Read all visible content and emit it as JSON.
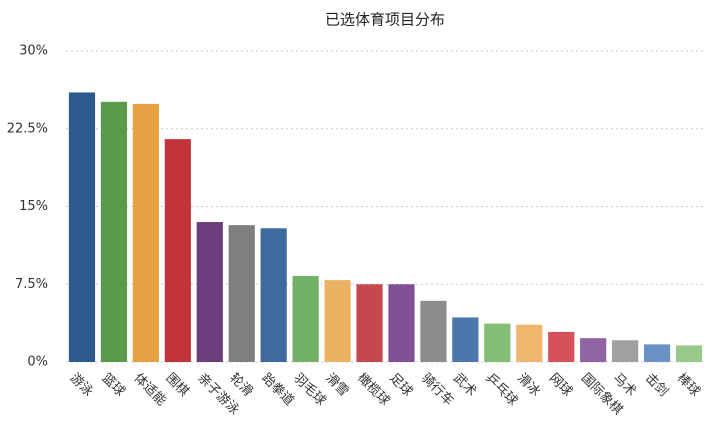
{
  "chart_data": {
    "type": "bar",
    "title": "已选体育项目分布",
    "categories": [
      "游泳",
      "篮球",
      "体适能",
      "围棋",
      "亲子游泳",
      "轮滑",
      "跆拳道",
      "羽毛球",
      "滑雪",
      "橄榄球",
      "足球",
      "骑行车",
      "武术",
      "乒乓球",
      "滑冰",
      "网球",
      "国际象棋",
      "马术",
      "击剑",
      "棒球"
    ],
    "values": [
      26.0,
      25.1,
      24.9,
      21.5,
      13.5,
      13.2,
      12.9,
      8.3,
      7.9,
      7.5,
      7.5,
      5.9,
      4.3,
      3.7,
      3.6,
      2.9,
      2.3,
      2.1,
      1.7,
      1.6
    ],
    "colors": [
      "#2d5a8e",
      "#5b9a4b",
      "#e5a142",
      "#c1343a",
      "#6b3d7a",
      "#7f7f7f",
      "#3f6a9e",
      "#73b166",
      "#ecb264",
      "#c8474f",
      "#805096",
      "#8c8c8c",
      "#4b77ab",
      "#83be74",
      "#f0b66e",
      "#d6525a",
      "#9063a3",
      "#a0a0a0",
      "#6a92c4",
      "#98c98a"
    ],
    "ylim": [
      0,
      30
    ],
    "yticks": [
      {
        "value": 0,
        "label": "0%"
      },
      {
        "value": 7.5,
        "label": "7.5%"
      },
      {
        "value": 15,
        "label": "15%"
      },
      {
        "value": 22.5,
        "label": "22.5%"
      },
      {
        "value": 30,
        "label": "30%"
      }
    ],
    "grid": true
  }
}
